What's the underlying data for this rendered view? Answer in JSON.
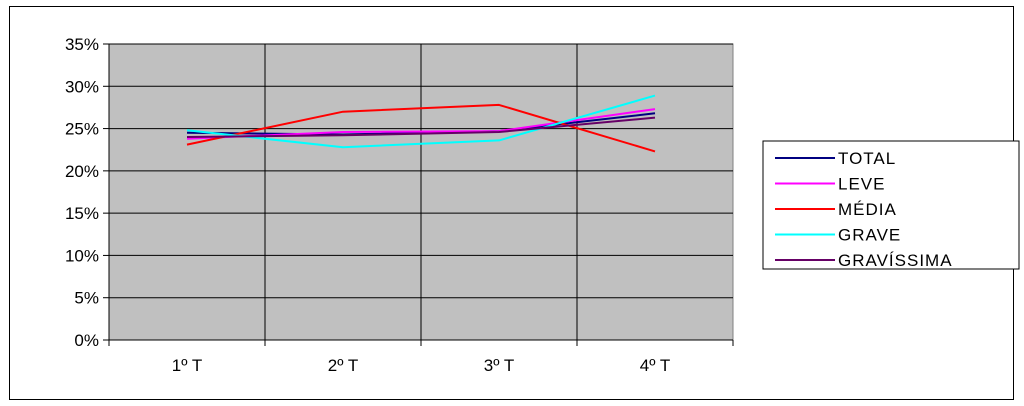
{
  "chart_data": {
    "type": "line",
    "title": "",
    "xlabel": "",
    "ylabel": "",
    "categories": [
      "1º T",
      "2º T",
      "3º T",
      "4º T"
    ],
    "y_ticks": [
      "0%",
      "5%",
      "10%",
      "15%",
      "20%",
      "25%",
      "30%",
      "35%"
    ],
    "ylim": [
      0,
      35
    ],
    "y_unit": "%",
    "grid": true,
    "plot_background": "#c0c0c0",
    "legend_position": "right",
    "series": [
      {
        "name": "TOTAL",
        "color": "#000080",
        "values": [
          24.5,
          24.3,
          24.7,
          26.8
        ]
      },
      {
        "name": "LEVE",
        "color": "#ff00ff",
        "values": [
          23.8,
          24.6,
          24.7,
          27.3
        ]
      },
      {
        "name": "MÉDIA",
        "color": "#ff0000",
        "values": [
          23.1,
          27.0,
          27.8,
          22.3
        ]
      },
      {
        "name": "GRAVE",
        "color": "#00ffff",
        "values": [
          24.8,
          22.8,
          23.6,
          28.9
        ]
      },
      {
        "name": "GRAVÍSSIMA",
        "color": "#660066",
        "values": [
          24.0,
          24.2,
          24.6,
          26.3
        ]
      }
    ]
  }
}
